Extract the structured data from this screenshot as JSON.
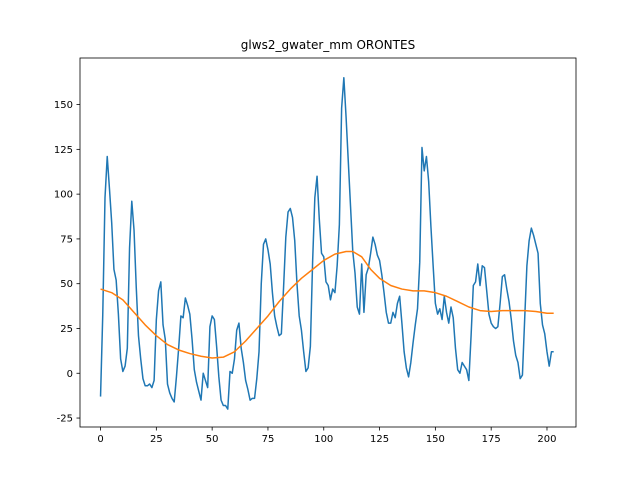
{
  "chart_data": {
    "type": "line",
    "title": "glws2_gwater_mm ORONTES",
    "xlabel": "",
    "ylabel": "",
    "xlim": [
      -9.2,
      213
    ],
    "ylim": [
      -30,
      176
    ],
    "xticks": [
      0,
      25,
      50,
      75,
      100,
      125,
      150,
      175,
      200
    ],
    "yticks": [
      -25,
      0,
      25,
      50,
      75,
      100,
      125,
      150
    ],
    "grid": false,
    "series": [
      {
        "color": "#1f77b4",
        "points": [
          [
            0,
            -13
          ],
          [
            1,
            33
          ],
          [
            2,
            98
          ],
          [
            3,
            121
          ],
          [
            4,
            103
          ],
          [
            5,
            84
          ],
          [
            6,
            58
          ],
          [
            7,
            52
          ],
          [
            8,
            33
          ],
          [
            9,
            8
          ],
          [
            10,
            1
          ],
          [
            11,
            4
          ],
          [
            12,
            14
          ],
          [
            13,
            70
          ],
          [
            14,
            96
          ],
          [
            15,
            80
          ],
          [
            16,
            48
          ],
          [
            17,
            21
          ],
          [
            18,
            8
          ],
          [
            19,
            -3
          ],
          [
            20,
            -7
          ],
          [
            21,
            -7
          ],
          [
            22,
            -6
          ],
          [
            23,
            -8
          ],
          [
            24,
            -4
          ],
          [
            25,
            30
          ],
          [
            26,
            46
          ],
          [
            27,
            51
          ],
          [
            28,
            27
          ],
          [
            29,
            19
          ],
          [
            30,
            -6
          ],
          [
            31,
            -11
          ],
          [
            32,
            -14
          ],
          [
            33,
            -16
          ],
          [
            34,
            -2
          ],
          [
            35,
            14
          ],
          [
            36,
            32
          ],
          [
            37,
            31
          ],
          [
            38,
            42
          ],
          [
            39,
            38
          ],
          [
            40,
            33
          ],
          [
            41,
            19
          ],
          [
            42,
            2
          ],
          [
            43,
            -5
          ],
          [
            44,
            -10
          ],
          [
            45,
            -15
          ],
          [
            46,
            0
          ],
          [
            47,
            -4
          ],
          [
            48,
            -8
          ],
          [
            49,
            26
          ],
          [
            50,
            32
          ],
          [
            51,
            30
          ],
          [
            52,
            15
          ],
          [
            53,
            -2
          ],
          [
            54,
            -15
          ],
          [
            55,
            -18
          ],
          [
            56,
            -18
          ],
          [
            57,
            -20
          ],
          [
            58,
            1
          ],
          [
            59,
            0
          ],
          [
            60,
            8
          ],
          [
            61,
            24
          ],
          [
            62,
            28
          ],
          [
            63,
            14
          ],
          [
            64,
            6
          ],
          [
            65,
            -4
          ],
          [
            66,
            -9
          ],
          [
            67,
            -15
          ],
          [
            68,
            -14
          ],
          [
            69,
            -14
          ],
          [
            70,
            -3
          ],
          [
            71,
            12
          ],
          [
            72,
            50
          ],
          [
            73,
            72
          ],
          [
            74,
            75
          ],
          [
            75,
            69
          ],
          [
            76,
            61
          ],
          [
            77,
            45
          ],
          [
            78,
            32
          ],
          [
            79,
            26
          ],
          [
            80,
            21
          ],
          [
            81,
            22
          ],
          [
            82,
            48
          ],
          [
            83,
            76
          ],
          [
            84,
            90
          ],
          [
            85,
            92
          ],
          [
            86,
            87
          ],
          [
            87,
            74
          ],
          [
            88,
            50
          ],
          [
            89,
            32
          ],
          [
            90,
            24
          ],
          [
            91,
            12
          ],
          [
            92,
            1
          ],
          [
            93,
            3
          ],
          [
            94,
            15
          ],
          [
            95,
            62
          ],
          [
            96,
            98
          ],
          [
            97,
            110
          ],
          [
            98,
            86
          ],
          [
            99,
            67
          ],
          [
            100,
            65
          ],
          [
            101,
            51
          ],
          [
            102,
            49
          ],
          [
            103,
            41
          ],
          [
            104,
            47
          ],
          [
            105,
            45
          ],
          [
            106,
            60
          ],
          [
            107,
            83
          ],
          [
            108,
            148
          ],
          [
            109,
            165
          ],
          [
            110,
            143
          ],
          [
            111,
            118
          ],
          [
            112,
            93
          ],
          [
            113,
            68
          ],
          [
            114,
            56
          ],
          [
            115,
            37
          ],
          [
            116,
            33
          ],
          [
            117,
            61
          ],
          [
            118,
            34
          ],
          [
            119,
            55
          ],
          [
            120,
            59
          ],
          [
            121,
            67
          ],
          [
            122,
            76
          ],
          [
            123,
            72
          ],
          [
            124,
            66
          ],
          [
            125,
            63
          ],
          [
            126,
            55
          ],
          [
            127,
            45
          ],
          [
            128,
            34
          ],
          [
            129,
            28
          ],
          [
            130,
            28
          ],
          [
            131,
            34
          ],
          [
            132,
            31
          ],
          [
            133,
            39
          ],
          [
            134,
            43
          ],
          [
            135,
            28
          ],
          [
            136,
            12
          ],
          [
            137,
            3
          ],
          [
            138,
            -2
          ],
          [
            139,
            6
          ],
          [
            140,
            17
          ],
          [
            141,
            27
          ],
          [
            142,
            36
          ],
          [
            143,
            62
          ],
          [
            144,
            126
          ],
          [
            145,
            113
          ],
          [
            146,
            121
          ],
          [
            147,
            107
          ],
          [
            148,
            82
          ],
          [
            149,
            60
          ],
          [
            150,
            39
          ],
          [
            151,
            33
          ],
          [
            152,
            36
          ],
          [
            153,
            30
          ],
          [
            154,
            43
          ],
          [
            155,
            34
          ],
          [
            156,
            28
          ],
          [
            157,
            37
          ],
          [
            158,
            31
          ],
          [
            159,
            14
          ],
          [
            160,
            2
          ],
          [
            161,
            0
          ],
          [
            162,
            6
          ],
          [
            163,
            4
          ],
          [
            164,
            2
          ],
          [
            165,
            -4
          ],
          [
            166,
            21
          ],
          [
            167,
            49
          ],
          [
            168,
            51
          ],
          [
            169,
            61
          ],
          [
            170,
            49
          ],
          [
            171,
            60
          ],
          [
            172,
            59
          ],
          [
            173,
            46
          ],
          [
            174,
            33
          ],
          [
            175,
            28
          ],
          [
            176,
            26
          ],
          [
            177,
            25
          ],
          [
            178,
            26
          ],
          [
            179,
            39
          ],
          [
            180,
            54
          ],
          [
            181,
            55
          ],
          [
            182,
            47
          ],
          [
            183,
            40
          ],
          [
            184,
            30
          ],
          [
            185,
            18
          ],
          [
            186,
            10
          ],
          [
            187,
            6
          ],
          [
            188,
            -3
          ],
          [
            189,
            -1
          ],
          [
            190,
            30
          ],
          [
            191,
            60
          ],
          [
            192,
            74
          ],
          [
            193,
            81
          ],
          [
            194,
            77
          ],
          [
            195,
            72
          ],
          [
            196,
            67
          ],
          [
            197,
            39
          ],
          [
            198,
            27
          ],
          [
            199,
            22
          ],
          [
            200,
            12
          ],
          [
            201,
            4
          ],
          [
            202,
            12
          ],
          [
            203,
            12
          ]
        ]
      },
      {
        "color": "#ff7f0e",
        "points": [
          [
            0,
            47
          ],
          [
            5,
            45
          ],
          [
            10,
            41
          ],
          [
            15,
            34
          ],
          [
            20,
            27
          ],
          [
            25,
            21
          ],
          [
            30,
            16
          ],
          [
            35,
            13
          ],
          [
            40,
            11
          ],
          [
            45,
            9.5
          ],
          [
            50,
            8.5
          ],
          [
            55,
            9
          ],
          [
            60,
            12
          ],
          [
            65,
            18
          ],
          [
            70,
            25
          ],
          [
            75,
            32
          ],
          [
            80,
            40
          ],
          [
            85,
            47
          ],
          [
            90,
            53
          ],
          [
            95,
            58
          ],
          [
            100,
            63
          ],
          [
            105,
            66.5
          ],
          [
            110,
            68
          ],
          [
            113,
            68
          ],
          [
            117,
            65
          ],
          [
            121,
            58
          ],
          [
            125,
            53
          ],
          [
            130,
            49
          ],
          [
            135,
            47
          ],
          [
            140,
            46
          ],
          [
            145,
            46
          ],
          [
            150,
            45
          ],
          [
            155,
            43
          ],
          [
            160,
            40
          ],
          [
            165,
            37
          ],
          [
            170,
            35
          ],
          [
            175,
            34.5
          ],
          [
            180,
            35
          ],
          [
            185,
            35
          ],
          [
            190,
            35
          ],
          [
            195,
            34.5
          ],
          [
            200,
            33.5
          ],
          [
            203,
            33.5
          ]
        ]
      }
    ]
  }
}
